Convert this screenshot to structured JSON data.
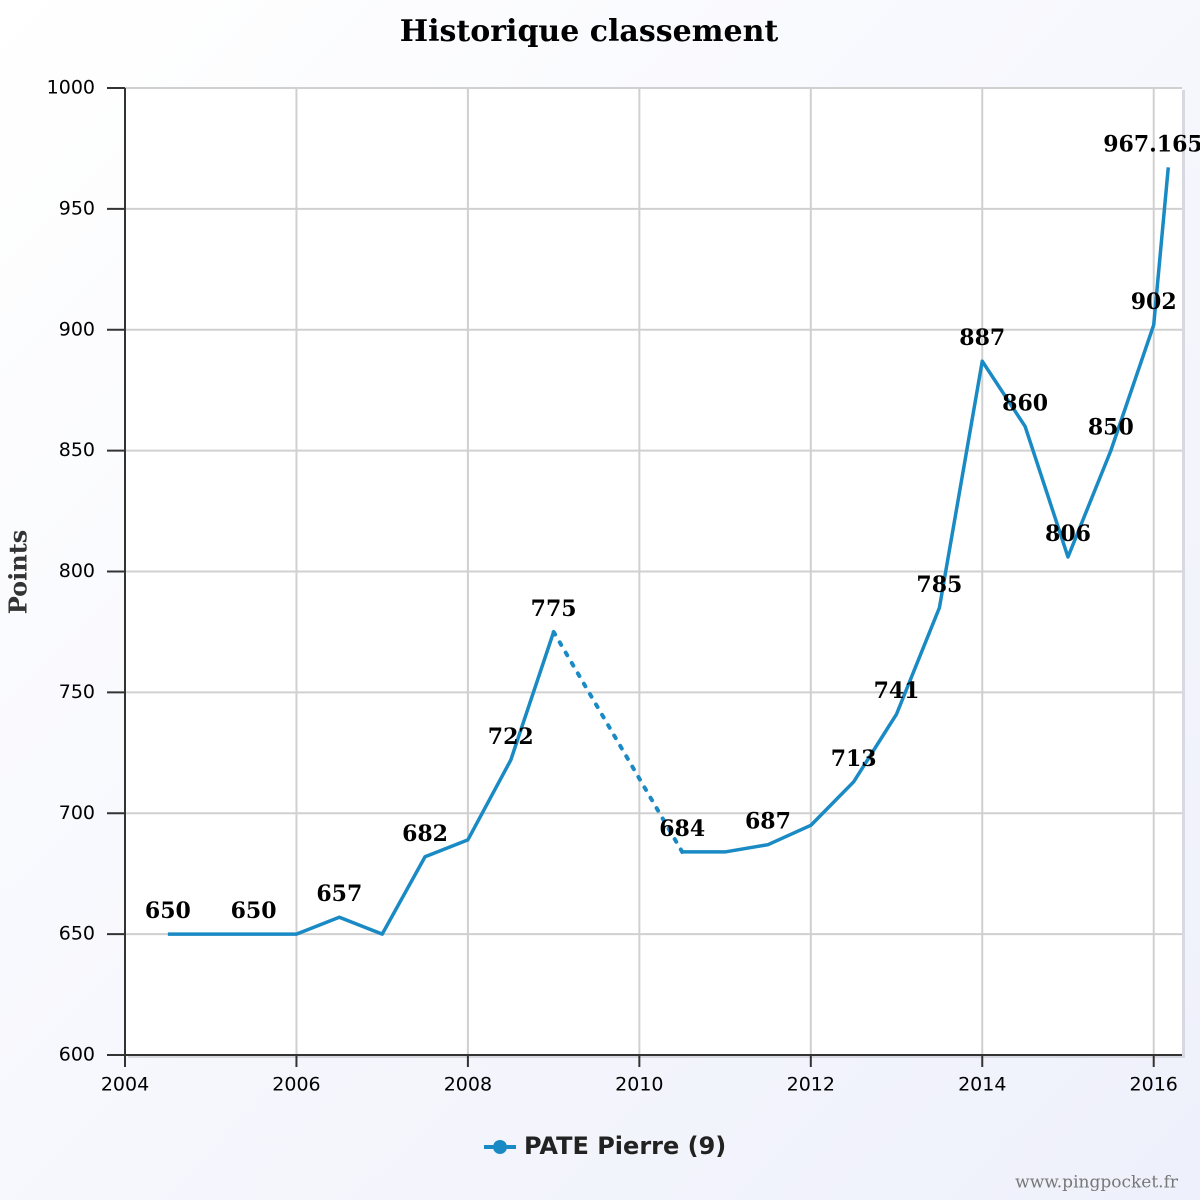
{
  "chart_data": {
    "type": "line",
    "title": "Historique classement",
    "ylabel": "Points",
    "x": [
      2004.5,
      2005,
      2005.5,
      2006,
      2006.5,
      2007,
      2007.5,
      2008,
      2008.5,
      2009,
      2010,
      2010.5,
      2011,
      2011.5,
      2012,
      2012.5,
      2013,
      2013.5,
      2014,
      2014.5,
      2015,
      2015.5,
      2016,
      2016.17
    ],
    "series": [
      {
        "name": "PATE Pierre (9)",
        "color": "#1a8ac4",
        "values": [
          650,
          650,
          650,
          650,
          657,
          650,
          682,
          689,
          722,
          775,
          null,
          684,
          684,
          687,
          695,
          713,
          741,
          785,
          887,
          860,
          806,
          850,
          902,
          967.16504
        ],
        "value_labels": [
          "650",
          null,
          "650",
          null,
          "657",
          null,
          "682",
          null,
          "722",
          "775",
          null,
          "684",
          null,
          "687",
          null,
          "713",
          "741",
          "785",
          "887",
          "860",
          "806",
          "850",
          "902",
          "967.16504"
        ]
      }
    ],
    "gap_style": "dotted",
    "xlim": [
      2004,
      2016.33
    ],
    "xticks": [
      2004,
      2006,
      2008,
      2010,
      2012,
      2014,
      2016
    ],
    "ylim": [
      600,
      1000
    ],
    "yticks": [
      600,
      650,
      700,
      750,
      800,
      850,
      900,
      950,
      1000
    ],
    "grid": true,
    "legend": "bottom",
    "footer": "www.pingpocket.fr"
  }
}
